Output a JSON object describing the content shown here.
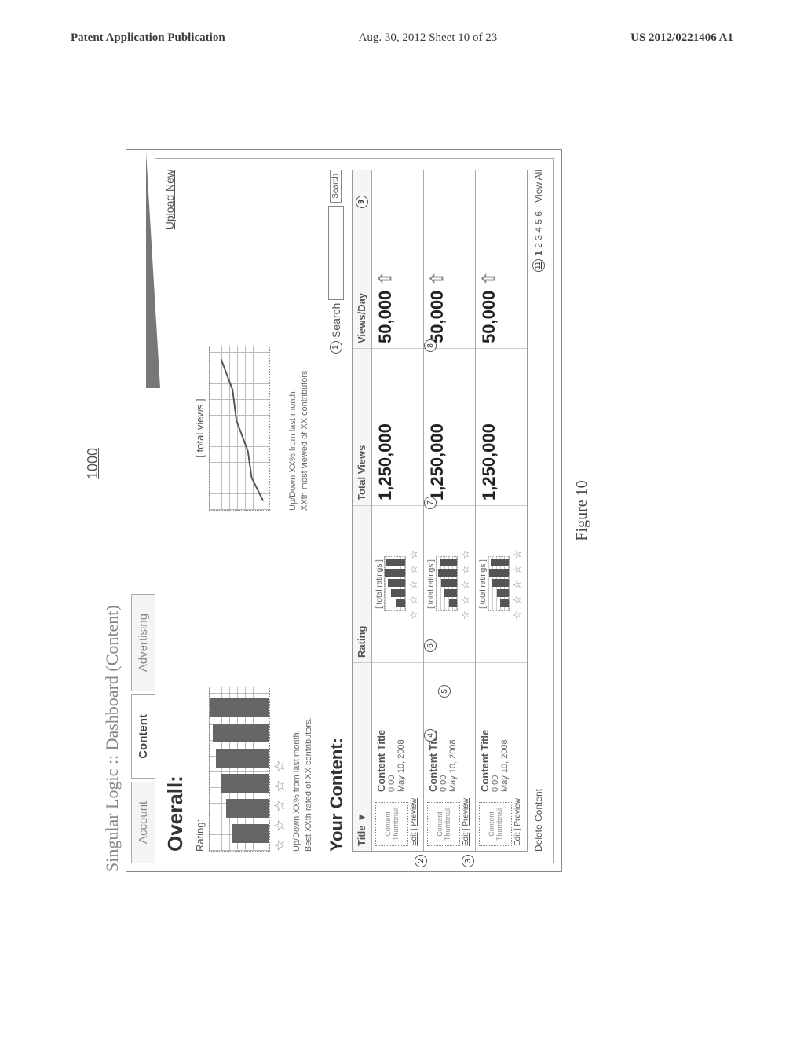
{
  "page_header": {
    "left": "Patent Application Publication",
    "center": "Aug. 30, 2012  Sheet 10 of 23",
    "right": "US 2012/0221406 A1"
  },
  "fig_number": "1000",
  "fig_label": "Figure 10",
  "window_title": "Singular Logic :: Dashboard (Content)",
  "tabs": {
    "account": "Account",
    "content": "Content",
    "advertising": "Advertising"
  },
  "overall": {
    "label": "Overall:",
    "upload": "Upload New",
    "rating_label": "Rating:",
    "rating_caption1": "Up/Down XX% from last month.",
    "rating_caption2": "Best XXth rated of XX contributors.",
    "views_label": "[ total views ]",
    "views_caption1": "Up/Down XX% from last month.",
    "views_caption2": "XXth most viewed of XX contributors",
    "rating_bars": [
      48,
      55,
      62,
      68,
      72,
      76
    ],
    "line_points": "5,70 35,55 70,50 110,35 150,30 190,15",
    "stars": "☆ ☆ ☆ ☆ ☆"
  },
  "content_section": {
    "heading": "Your Content:",
    "search_label": "Search",
    "search_btn": "Search",
    "columns": {
      "title": "Title ▼",
      "rating": "Rating",
      "total": "Total Views",
      "perday": "Views/Day"
    },
    "rows": [
      {
        "title": "Content Title",
        "duration": "0:00",
        "date": "May 10, 2008",
        "thumb": "Content Thumbnail",
        "edit": "Edit",
        "preview": "Preview",
        "rating_label": "[ total ratings ]",
        "stars": "☆ ☆ ☆ ☆ ☆",
        "rating_bars": [
          12,
          18,
          22,
          26,
          24
        ],
        "total": "1,250,000",
        "perday": "50,000"
      },
      {
        "title": "Content Title",
        "duration": "0:00",
        "date": "May 10, 2008",
        "thumb": "Content Thumbnail",
        "edit": "Edit",
        "preview": "Preview",
        "rating_label": "[ total ratings ]",
        "stars": "☆ ☆ ☆ ☆ ☆",
        "rating_bars": [
          10,
          16,
          20,
          24,
          22
        ],
        "total": "1,250,000",
        "perday": "50,000"
      },
      {
        "title": "Content Title",
        "duration": "0:00",
        "date": "May 10, 2008",
        "thumb": "Content Thumbnail",
        "edit": "Edit",
        "preview": "Preview",
        "rating_label": "[ total ratings ]",
        "stars": "☆ ☆ ☆ ☆ ☆",
        "rating_bars": [
          11,
          15,
          21,
          25,
          23
        ],
        "total": "1,250,000",
        "perday": "50,000"
      }
    ],
    "delete": "Delete Content",
    "viewall": "View All",
    "pages": [
      "1",
      "2",
      "3",
      "4",
      "5",
      "6"
    ]
  },
  "callouts": {
    "c1": "1",
    "c2": "2",
    "c3": "3",
    "c4": "4",
    "c5": "5",
    "c6": "6",
    "c7": "7",
    "c8": "8",
    "c9": "9",
    "c11": "11"
  },
  "style": {
    "bg": "#ffffff",
    "fg": "#3a3a3a",
    "muted": "#888888",
    "border": "#999999",
    "bar": "#666666"
  }
}
